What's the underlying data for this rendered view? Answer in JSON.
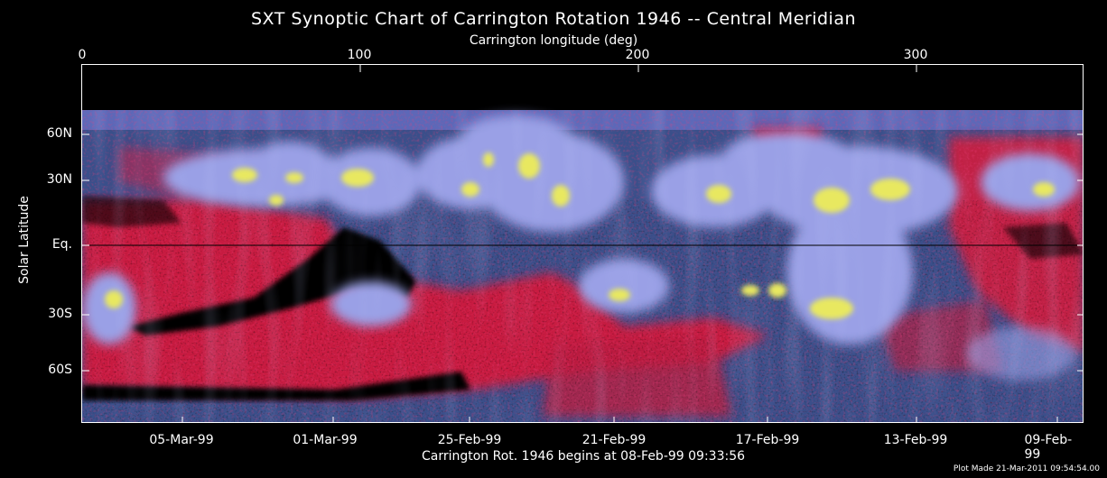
{
  "title": "SXT Synoptic Chart of Carrington Rotation 1946 -- Central Meridian",
  "top_axis": {
    "label": "Carrington longitude (deg)",
    "ticks": [
      "0",
      "100",
      "200",
      "300"
    ]
  },
  "left_axis": {
    "label": "Solar Latitude",
    "ticks": [
      "60N",
      "30N",
      "Eq.",
      "30S",
      "60S"
    ]
  },
  "bottom_axis": {
    "label": "Carrington Rot. 1946 begins at 08-Feb-99 09:33:56",
    "ticks": [
      "05-Mar-99",
      "01-Mar-99",
      "25-Feb-99",
      "21-Feb-99",
      "17-Feb-99",
      "13-Feb-99",
      "09-Feb-99"
    ]
  },
  "footer": {
    "plot_made": "Plot Made 21-Mar-2011 09:54:54.00"
  },
  "colors": {
    "background": "#000000",
    "quiet_blue": "#3a4f8a",
    "loop_lavender": "#9aa0e6",
    "bright_yellow": "#e8e860",
    "hole_red": "#e0183a"
  }
}
